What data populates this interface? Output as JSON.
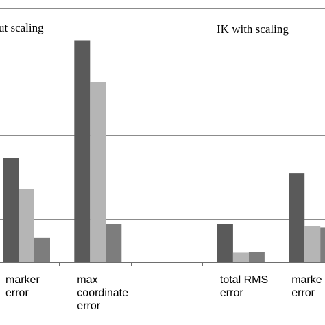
{
  "chart_data": {
    "type": "bar",
    "panel_titles": [
      "ut scaling",
      "IK with scaling"
    ],
    "categories": [
      [
        "marker",
        "error"
      ],
      [
        "max",
        "coordinate",
        "error"
      ],
      [],
      [
        "total RMS",
        "error"
      ],
      [
        "marke",
        "error"
      ]
    ],
    "series": [
      {
        "values": [
          245,
          523,
          0,
          90,
          209
        ],
        "color": "#5a5a5a"
      },
      {
        "values": [
          172,
          426,
          0,
          22,
          85
        ],
        "color": "#b5b5b5"
      },
      {
        "values": [
          57,
          90,
          0,
          24,
          82
        ],
        "color": "#7d7d7d"
      }
    ],
    "ylim": [
      0,
      600
    ],
    "grid_step": 100,
    "grid": true
  }
}
